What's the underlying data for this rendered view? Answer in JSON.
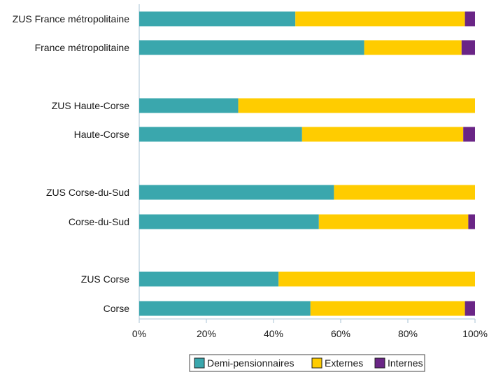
{
  "chart_data": {
    "type": "bar",
    "orientation": "horizontal",
    "stacked": true,
    "categories": [
      "ZUS France métropolitaine",
      "France métropolitaine",
      "ZUS Haute-Corse",
      "Haute-Corse",
      "ZUS Corse-du-Sud",
      "Corse-du-Sud",
      "ZUS Corse",
      "Corse"
    ],
    "series": [
      {
        "name": "Demi-pensionnaires",
        "color": "#3aa7ad",
        "values": [
          46.5,
          67,
          29.5,
          48.5,
          58,
          53.5,
          41.5,
          51
        ]
      },
      {
        "name": "Externes",
        "color": "#ffcc00",
        "values": [
          50.5,
          29,
          70.5,
          48,
          42,
          44.5,
          58.5,
          46
        ]
      },
      {
        "name": "Internes",
        "color": "#6a2586",
        "values": [
          3,
          4,
          0,
          3.5,
          0,
          2,
          0,
          3
        ]
      }
    ],
    "xaxis": {
      "ticks": [
        "0%",
        "20%",
        "40%",
        "60%",
        "80%",
        "100%"
      ],
      "range": [
        0,
        100
      ]
    },
    "legend": {
      "position": "bottom-center"
    },
    "grid": false
  }
}
